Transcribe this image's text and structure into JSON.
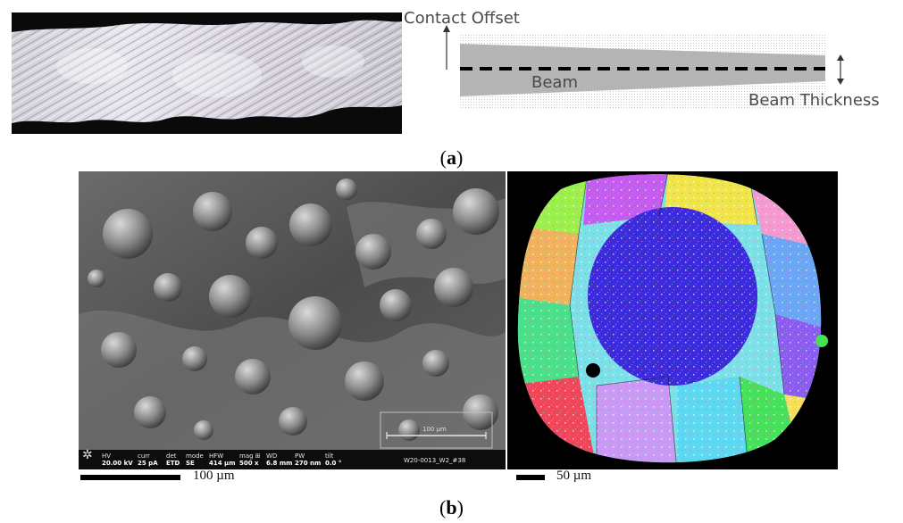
{
  "panel_a": {
    "label": "(a)",
    "label_letter": "a",
    "diagram": {
      "contact_offset": "Contact Offset",
      "beam": "Beam",
      "beam_thickness": "Beam Thickness"
    }
  },
  "panel_b": {
    "label": "(b)",
    "label_letter": "b",
    "sem": {
      "info_bar": [
        {
          "key": "HV",
          "value": "20.00 kV"
        },
        {
          "key": "curr",
          "value": "25 pA"
        },
        {
          "key": "det",
          "value": "ETD"
        },
        {
          "key": "mode",
          "value": "SE"
        },
        {
          "key": "HFW",
          "value": "414 µm"
        },
        {
          "key": "mag ⊞",
          "value": "500 x"
        },
        {
          "key": "WD",
          "value": "6.8 mm"
        },
        {
          "key": "PW",
          "value": "270 nm"
        },
        {
          "key": "tilt",
          "value": "0.0 °"
        }
      ],
      "scale_label": "100 µm",
      "sample_id": "W20-0013_W2_#38"
    },
    "sem_scale": "100 µm",
    "ebsd_scale": "50 µm"
  },
  "colors": {
    "beam_fill": "#b4b4b4",
    "ebsd_background": "#000000",
    "ebsd_center": "#3b2bdc"
  }
}
